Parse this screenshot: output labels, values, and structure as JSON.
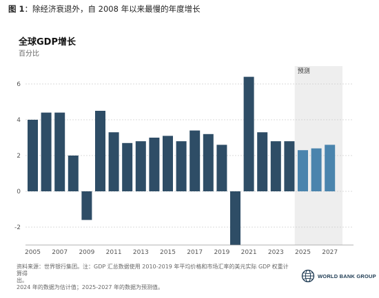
{
  "header": {
    "figure_label": "图 1",
    "figure_caption": "：除经济衰退外，自 2008 年以来最慢的年度增长"
  },
  "chart_data": {
    "type": "bar",
    "title": "全球GDP增长",
    "subtitle": "百分比",
    "xlabel": "",
    "ylabel": "",
    "ylim": [
      -3,
      7
    ],
    "yticks": [
      -2,
      0,
      2,
      4,
      6
    ],
    "grid": true,
    "categories": [
      "2005",
      "2006",
      "2007",
      "2008",
      "2009",
      "2010",
      "2011",
      "2012",
      "2013",
      "2014",
      "2015",
      "2016",
      "2017",
      "2018",
      "2019",
      "2020",
      "2021",
      "2022",
      "2023",
      "2024",
      "2025",
      "2026",
      "2027"
    ],
    "x_tick_labels": [
      "2005",
      "2007",
      "2009",
      "2011",
      "2013",
      "2015",
      "2017",
      "2019",
      "2021",
      "2023",
      "2025",
      "2027"
    ],
    "values": [
      4.0,
      4.4,
      4.4,
      2.0,
      -1.6,
      4.5,
      3.3,
      2.7,
      2.8,
      3.0,
      3.1,
      2.8,
      3.4,
      3.2,
      2.6,
      -3.0,
      6.4,
      3.3,
      2.8,
      2.8,
      2.3,
      2.4,
      2.6
    ],
    "forecast_start": "2025",
    "forecast_label": "预测",
    "colors": {
      "actual": "#2e4d66",
      "forecast": "#4a84ad",
      "forecast_band": "#eeeeee",
      "grid": "#cccccc"
    }
  },
  "footer": {
    "source_line1": "资料来源：世界银行集团。注：GDP 汇总数据使用 2010-2019 年平均价格和市场汇率的美元实际 GDP 权重计算得",
    "source_line2": "出。",
    "source_line3": "2024 年的数据为估计值；2025-2027 年的数据为预测值。",
    "logo_text": "WORLD BANK GROUP",
    "logo_icon": "globe-icon"
  }
}
